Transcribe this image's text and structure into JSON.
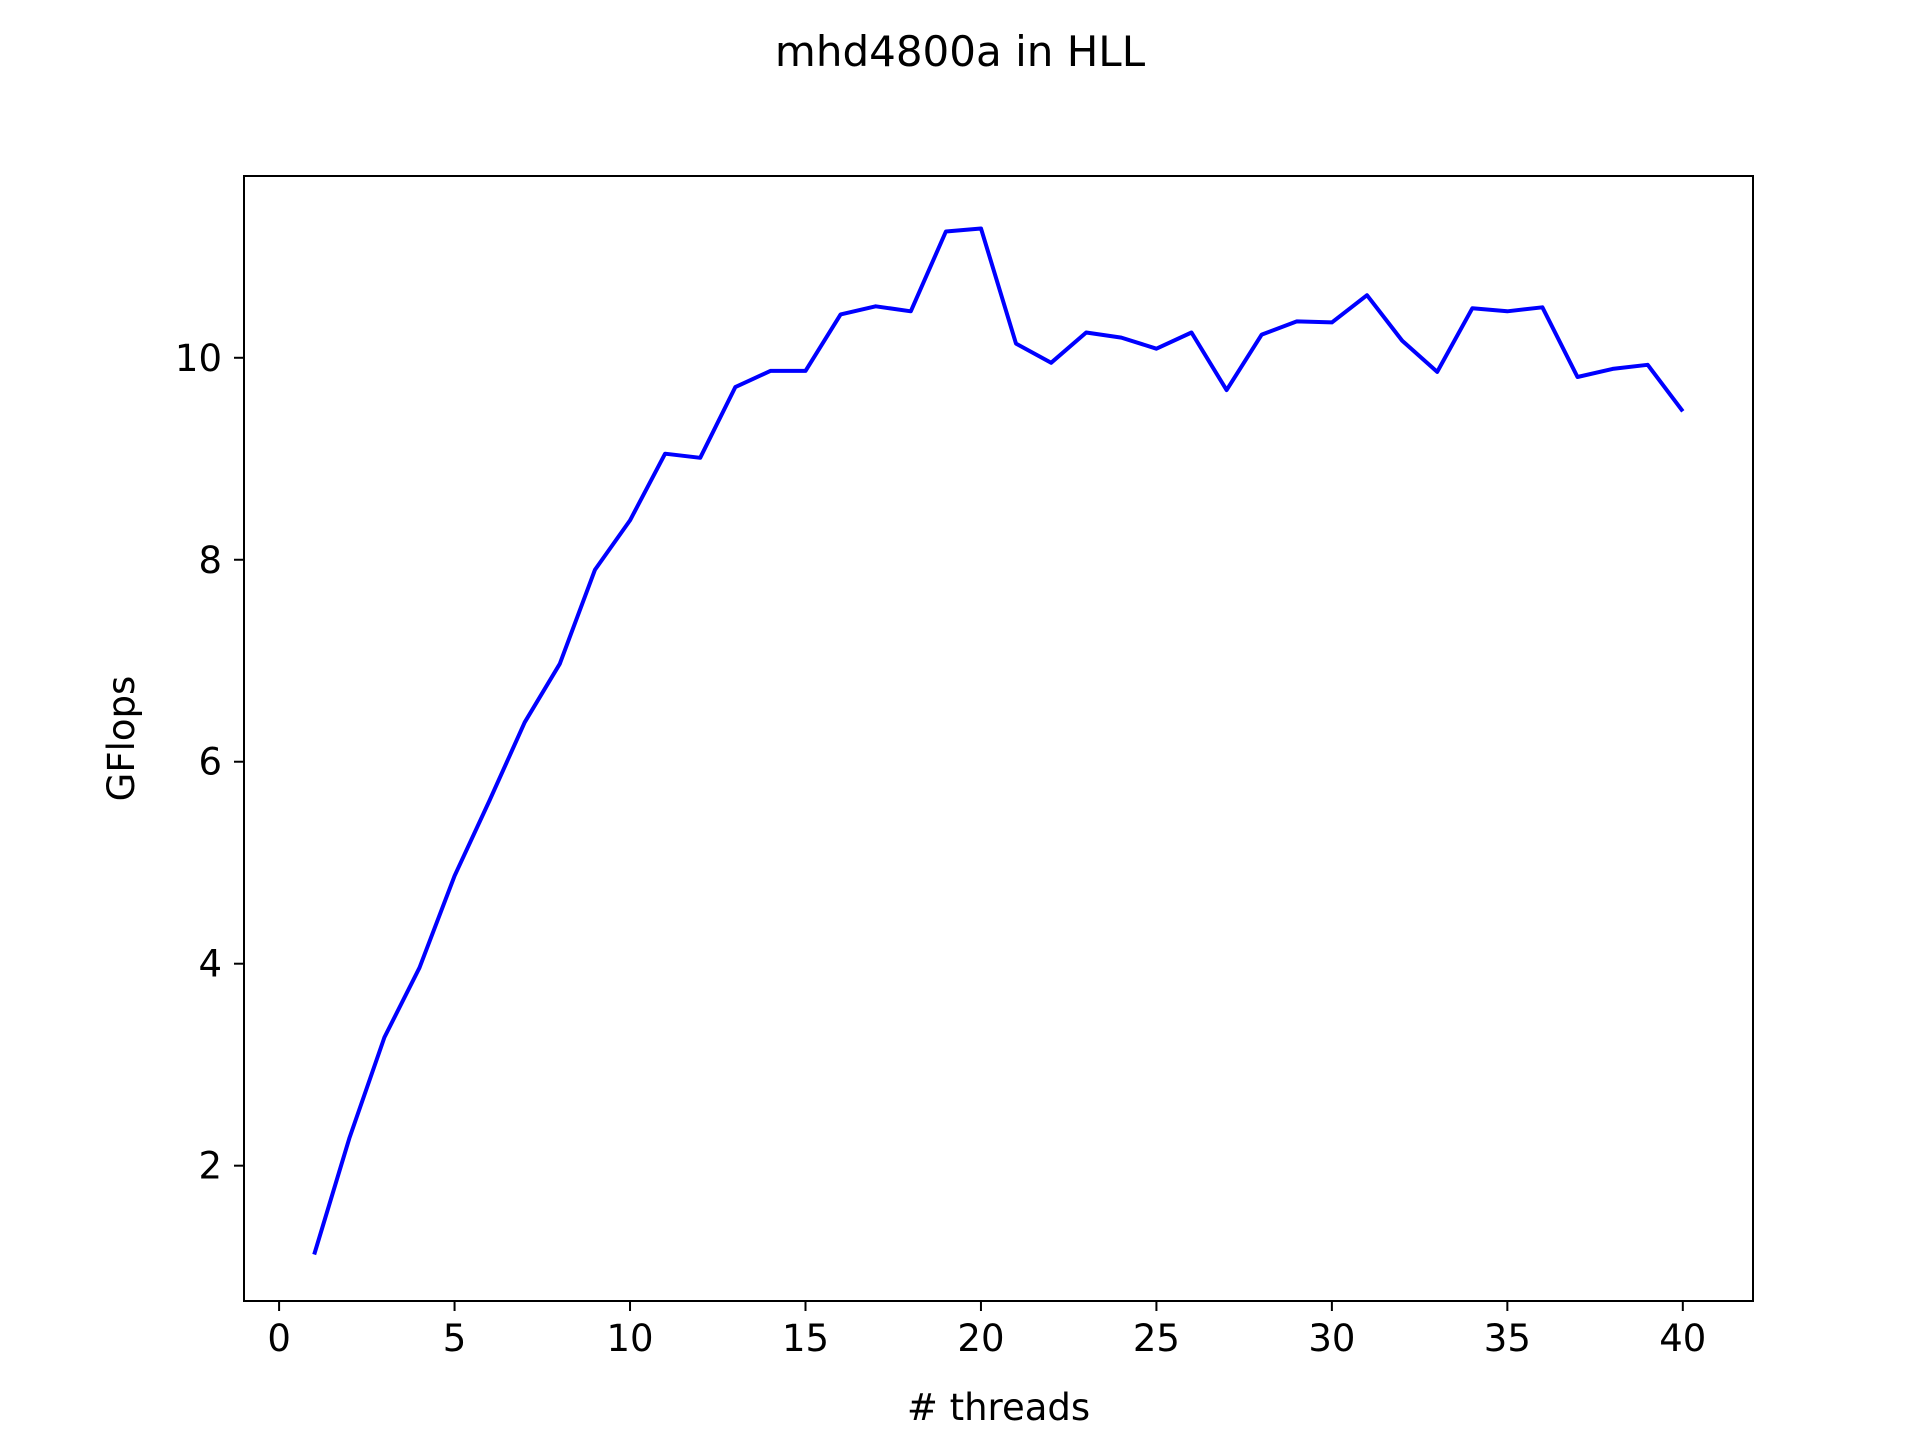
{
  "chart_data": {
    "type": "line",
    "title": "mhd4800a in HLL",
    "xlabel": "# threads",
    "ylabel": "GFlops",
    "xlim": [
      -1,
      42
    ],
    "ylim": [
      0.66,
      11.8
    ],
    "xticks": [
      0,
      5,
      10,
      15,
      20,
      25,
      30,
      35,
      40
    ],
    "yticks": [
      2,
      4,
      6,
      8,
      10
    ],
    "grid": false,
    "legend": "none",
    "series": [
      {
        "color": "#0000ff",
        "x": [
          1,
          2,
          3,
          4,
          5,
          6,
          7,
          8,
          9,
          10,
          11,
          12,
          13,
          14,
          15,
          16,
          17,
          18,
          19,
          20,
          21,
          22,
          23,
          24,
          25,
          26,
          27,
          28,
          29,
          30,
          31,
          32,
          33,
          34,
          35,
          36,
          37,
          38,
          39,
          40
        ],
        "y": [
          1.12,
          2.27,
          3.27,
          3.96,
          4.87,
          5.62,
          6.39,
          6.97,
          7.9,
          8.39,
          9.05,
          9.01,
          9.71,
          9.87,
          9.87,
          10.43,
          10.51,
          10.46,
          11.25,
          11.28,
          10.14,
          9.95,
          10.25,
          10.2,
          10.09,
          10.25,
          9.68,
          10.23,
          10.36,
          10.35,
          10.62,
          10.17,
          9.86,
          10.49,
          10.46,
          10.5,
          9.81,
          9.89,
          9.93,
          9.47
        ]
      }
    ]
  }
}
